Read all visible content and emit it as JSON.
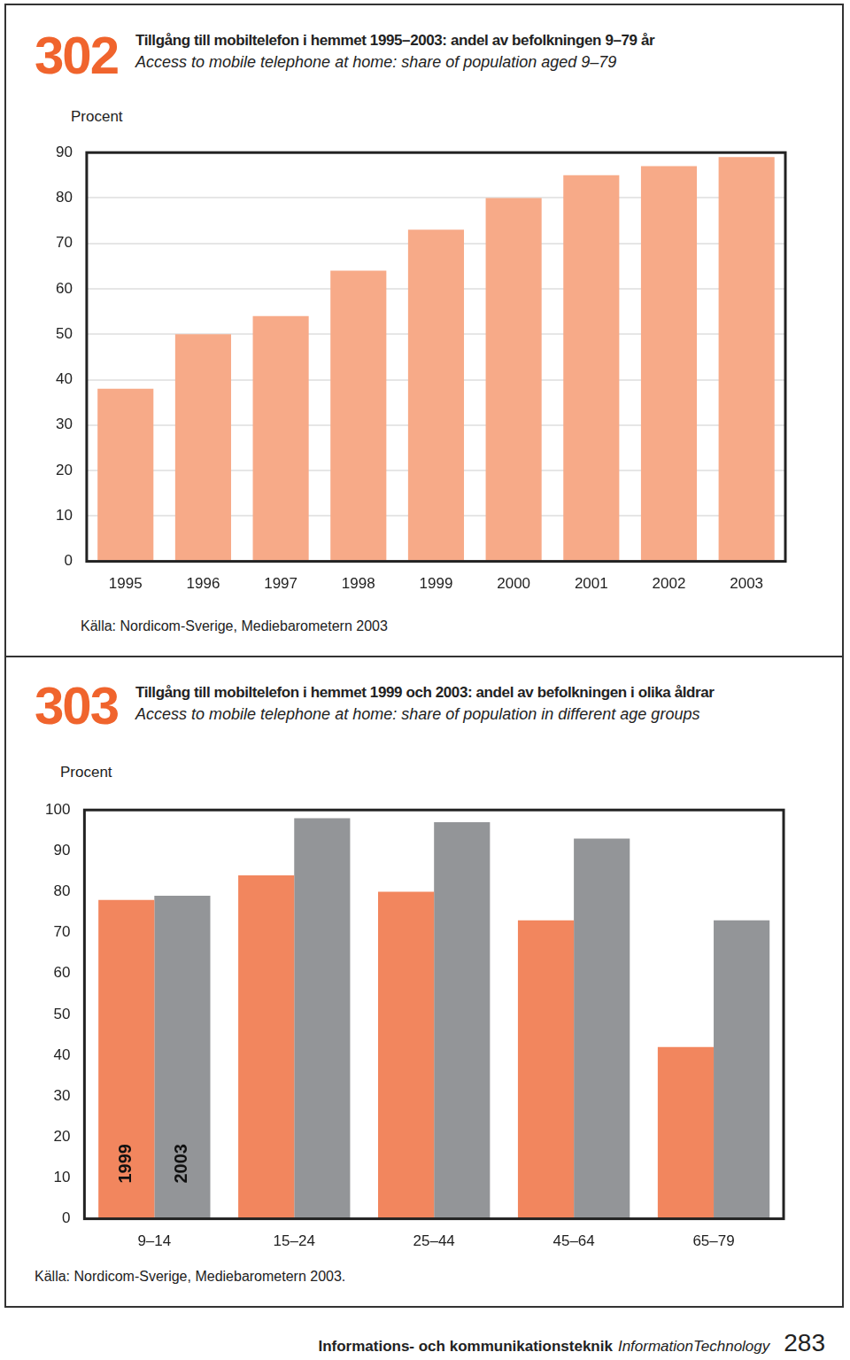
{
  "chart_data": [
    {
      "type": "bar",
      "number": "302",
      "title": "Tillgång till mobiltelefon i hemmet 1995–2003: andel av befolkningen 9–79 år",
      "subtitle": "Access to mobile telephone at home: share of population aged 9–79",
      "ylabel": "Procent",
      "source": "Källa: Nordicom-Sverige, Mediebarometern 2003",
      "categories": [
        "1995",
        "1996",
        "1997",
        "1998",
        "1999",
        "2000",
        "2001",
        "2002",
        "2003"
      ],
      "values": [
        38,
        50,
        54,
        64,
        73,
        80,
        85,
        87,
        89
      ],
      "color": "#f7aa88",
      "ylim": [
        0,
        90
      ],
      "yticks": [
        0,
        10,
        20,
        30,
        40,
        50,
        60,
        70,
        80,
        90
      ],
      "grid": true
    },
    {
      "type": "bar",
      "number": "303",
      "title": "Tillgång till mobiltelefon i hemmet 1999 och 2003: andel av befolkningen i olika åldrar",
      "subtitle": "Access to mobile telephone at home: share of population in different age groups",
      "ylabel": "Procent",
      "source": "Källa: Nordicom-Sverige, Mediebarometern 2003.",
      "categories": [
        "9–14",
        "15–24",
        "25–44",
        "45–64",
        "65–79"
      ],
      "series": [
        {
          "name": "1999",
          "color": "#f2865e",
          "values": [
            78,
            84,
            80,
            73,
            42
          ]
        },
        {
          "name": "2003",
          "color": "#939598",
          "values": [
            79,
            98,
            97,
            93,
            73
          ]
        }
      ],
      "ylim": [
        0,
        100
      ],
      "yticks": [
        0,
        10,
        20,
        30,
        40,
        50,
        60,
        70,
        80,
        90,
        100
      ],
      "grid": false
    }
  ],
  "footer": {
    "section": "Informations- och kommunikationsteknik",
    "section_en": "InformationTechnology",
    "page": "283"
  }
}
